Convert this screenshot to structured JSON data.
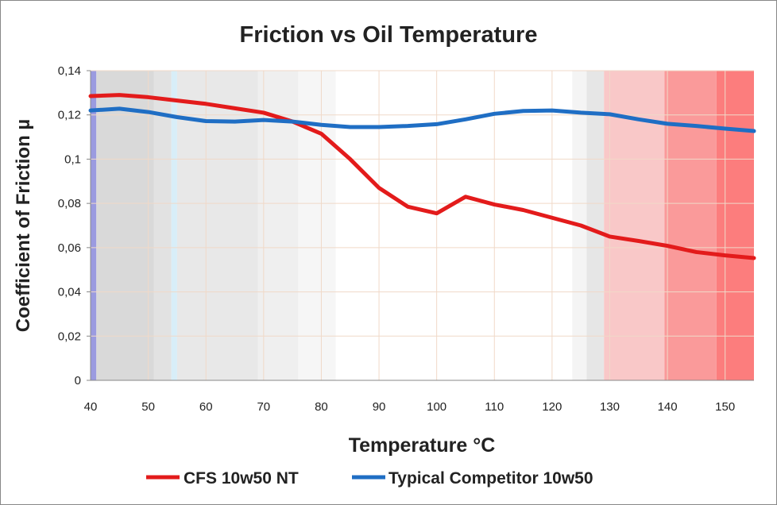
{
  "chart_data": {
    "type": "line",
    "title": "Friction vs Oil Temperature",
    "xlabel": "Temperature °C",
    "ylabel": "Coefficient of Friction µ",
    "xlim": [
      40,
      155
    ],
    "ylim": [
      0,
      0.14
    ],
    "grid": true,
    "legend_placement": "bottom",
    "x_ticks": [
      "40",
      "50",
      "60",
      "70",
      "80",
      "90",
      "100",
      "110",
      "120",
      "130",
      "140",
      "150"
    ],
    "y_ticks": [
      "0",
      "0,02",
      "0,04",
      "0,06",
      "0,08",
      "0,1",
      "0,12",
      "0,14"
    ],
    "x": [
      40,
      45,
      50,
      55,
      60,
      65,
      70,
      75,
      80,
      85,
      90,
      95,
      100,
      105,
      110,
      115,
      120,
      125,
      130,
      135,
      140,
      145,
      150,
      155
    ],
    "series": [
      {
        "name": "CFS 10w50 NT",
        "color": "#e31b1b",
        "values": [
          0.1285,
          0.129,
          0.128,
          0.1265,
          0.125,
          0.123,
          0.121,
          0.117,
          0.1115,
          0.1,
          0.087,
          0.0785,
          0.0755,
          0.083,
          0.0795,
          0.077,
          0.0735,
          0.07,
          0.065,
          0.063,
          0.0608,
          0.058,
          0.0565,
          0.0553
        ]
      },
      {
        "name": "Typical Competitor 10w50",
        "color": "#1f6ec4",
        "values": [
          0.122,
          0.1228,
          0.1213,
          0.119,
          0.1172,
          0.117,
          0.1177,
          0.117,
          0.1155,
          0.1145,
          0.1145,
          0.115,
          0.1158,
          0.118,
          0.1205,
          0.1218,
          0.122,
          0.121,
          0.1203,
          0.118,
          0.116,
          0.115,
          0.1138,
          0.1127
        ]
      }
    ]
  }
}
